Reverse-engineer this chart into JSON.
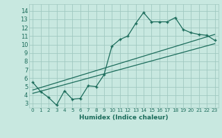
{
  "xlabel": "Humidex (Indice chaleur)",
  "bg_color": "#c8e8e0",
  "grid_color": "#a0c8c0",
  "line_color": "#1a6b5a",
  "xlim": [
    -0.5,
    23.5
  ],
  "ylim": [
    2.5,
    14.8
  ],
  "xticks": [
    0,
    1,
    2,
    3,
    4,
    5,
    6,
    7,
    8,
    9,
    10,
    11,
    12,
    13,
    14,
    15,
    16,
    17,
    18,
    19,
    20,
    21,
    22,
    23
  ],
  "yticks": [
    3,
    4,
    5,
    6,
    7,
    8,
    9,
    10,
    11,
    12,
    13,
    14
  ],
  "jagged_x": [
    0,
    1,
    2,
    3,
    4,
    5,
    6,
    7,
    8,
    9,
    10,
    11,
    12,
    13,
    14,
    15,
    16,
    17,
    18,
    19,
    20,
    21,
    22,
    23
  ],
  "jagged_y": [
    5.5,
    4.4,
    3.7,
    2.8,
    4.5,
    3.5,
    3.6,
    5.1,
    5.0,
    6.4,
    9.8,
    10.6,
    11.0,
    12.5,
    13.8,
    12.7,
    12.7,
    12.7,
    13.2,
    11.8,
    11.4,
    11.2,
    11.1,
    10.5
  ],
  "line1_x": [
    0,
    23
  ],
  "line1_y": [
    4.6,
    11.2
  ],
  "line2_x": [
    0,
    23
  ],
  "line2_y": [
    4.2,
    10.1
  ],
  "xlabel_fontsize": 6.5,
  "tick_fontsize_x": 5.2,
  "tick_fontsize_y": 6.0
}
